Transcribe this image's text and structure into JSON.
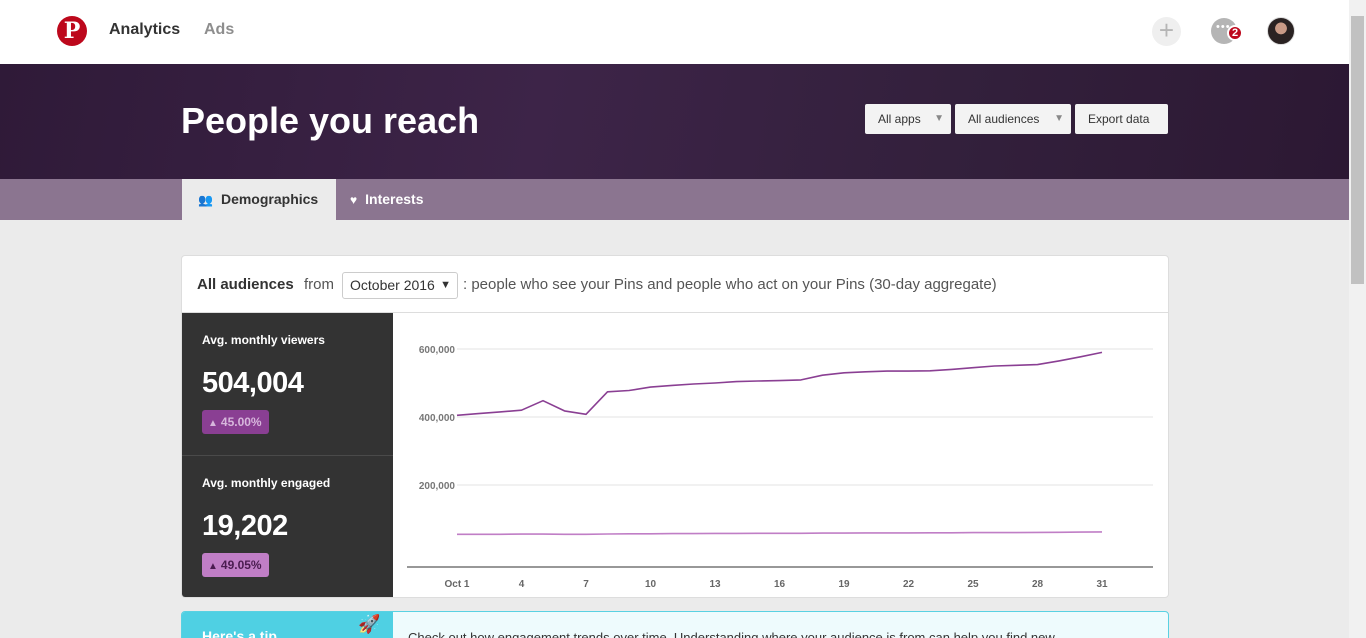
{
  "nav": {
    "logo_glyph": "P",
    "links": [
      "Analytics",
      "Ads"
    ],
    "plus_glyph": "+",
    "message_badge": "2"
  },
  "hero": {
    "title": "People you reach",
    "buttons": {
      "apps": "All apps",
      "audiences": "All audiences",
      "export": "Export data"
    }
  },
  "tabs": [
    {
      "label": "Demographics",
      "icon": "people-icon",
      "active": true
    },
    {
      "label": "Interests",
      "icon": "heart-icon",
      "active": false
    }
  ],
  "card": {
    "header": {
      "audience": "All audiences",
      "from": "from",
      "month": "October 2016",
      "description": ": people who see your Pins and people who act on your Pins (30-day aggregate)"
    },
    "stats": [
      {
        "label": "Avg. monthly viewers",
        "value": "504,004",
        "change": "45.00%"
      },
      {
        "label": "Avg. monthly engaged",
        "value": "19,202",
        "change": "49.05%"
      }
    ]
  },
  "tip": {
    "title": "Here's a tip",
    "text": "Check out how engagement trends over time. Understanding where your audience is from can help you find new"
  },
  "colors": {
    "brand": "#bd081c",
    "viewers_line": "#8a3f93",
    "engaged_line": "#c07ec6"
  },
  "chart_data": {
    "type": "line",
    "x": [
      1,
      2,
      3,
      4,
      5,
      6,
      7,
      8,
      9,
      10,
      11,
      12,
      13,
      14,
      15,
      16,
      17,
      18,
      19,
      20,
      21,
      22,
      23,
      24,
      25,
      26,
      27,
      28,
      29,
      30,
      31
    ],
    "x_tick_labels": [
      "Oct 1",
      "4",
      "7",
      "10",
      "13",
      "16",
      "19",
      "22",
      "25",
      "28",
      "31"
    ],
    "x_tick_values": [
      1,
      4,
      7,
      10,
      13,
      16,
      19,
      22,
      25,
      28,
      31
    ],
    "y_tick_labels": [
      "600,000",
      "400,000",
      "200,000"
    ],
    "y_tick_values": [
      600000,
      400000,
      200000
    ],
    "ylim": [
      0,
      640000
    ],
    "grid": true,
    "series": [
      {
        "values": [
          405000,
          410000,
          415000,
          420000,
          448000,
          418000,
          408000,
          474000,
          478000,
          488000,
          493000,
          497000,
          500000,
          504000,
          506000,
          507000,
          509000,
          523000,
          530000,
          533000,
          535000,
          535000,
          536000,
          540000,
          545000,
          550000,
          552000,
          554000,
          565000,
          577000,
          590000
        ]
      },
      {
        "values": [
          55000,
          55000,
          55000,
          55500,
          55500,
          55000,
          55000,
          56000,
          56500,
          56500,
          57000,
          57000,
          57500,
          57500,
          58000,
          58000,
          58000,
          58500,
          58500,
          59000,
          59000,
          59000,
          59500,
          59500,
          60000,
          60000,
          60000,
          60500,
          61000,
          61500,
          62000
        ]
      }
    ]
  }
}
